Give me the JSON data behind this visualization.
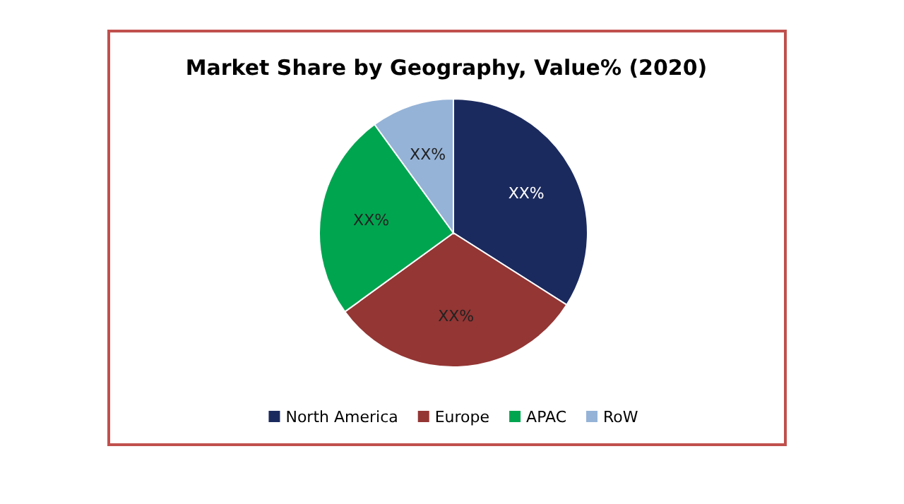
{
  "chart_data": {
    "type": "pie",
    "title": "Market Share by Geography, Value% (2020)",
    "categories": [
      "North America",
      "Europe",
      "APAC",
      "RoW"
    ],
    "values": [
      34,
      31,
      25,
      10
    ],
    "colors": [
      "#1b2a5e",
      "#943634",
      "#00a550",
      "#95b3d7"
    ],
    "value_labels": [
      "XX%",
      "XX%",
      "XX%",
      "XX%"
    ],
    "legend": "bottom"
  }
}
